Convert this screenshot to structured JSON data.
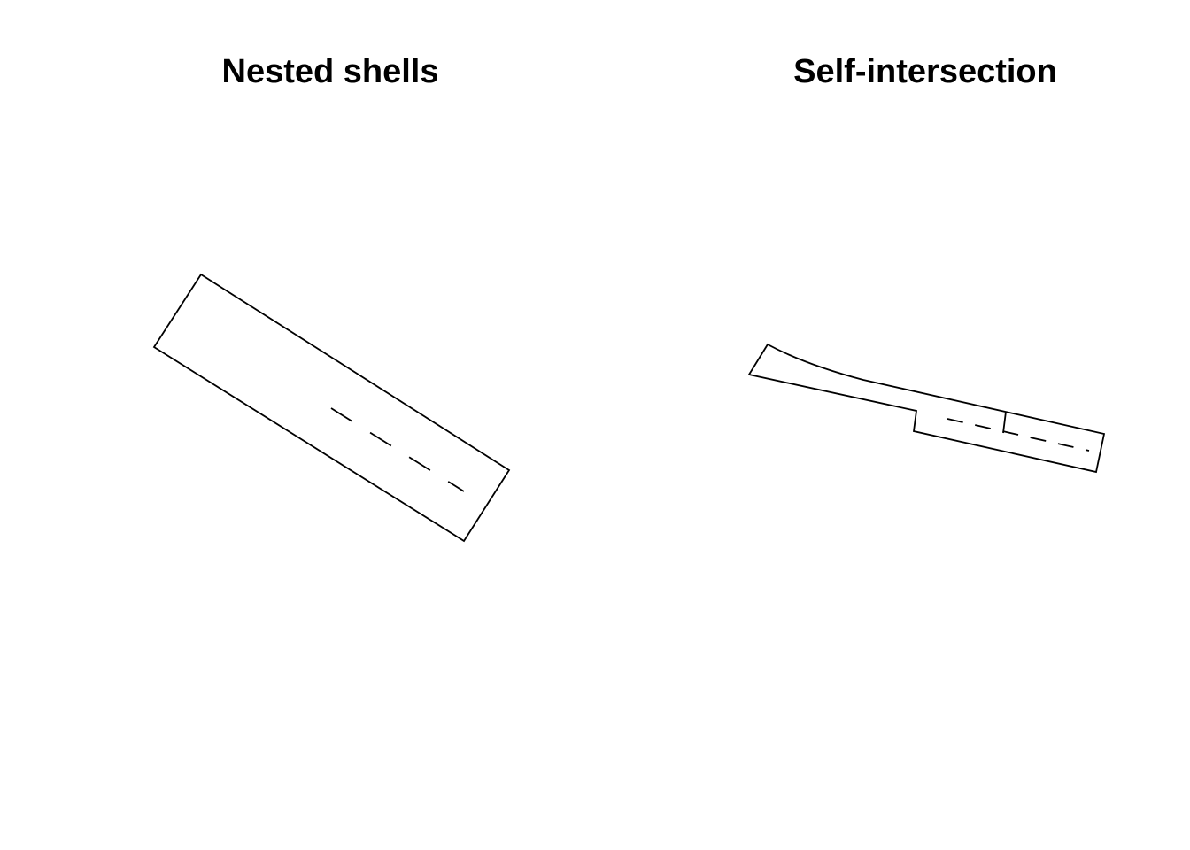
{
  "panels": [
    {
      "title": "Nested shells"
    },
    {
      "title": "Self-intersection"
    }
  ],
  "colors": {
    "background": "#ffffff",
    "stroke": "#000000"
  }
}
